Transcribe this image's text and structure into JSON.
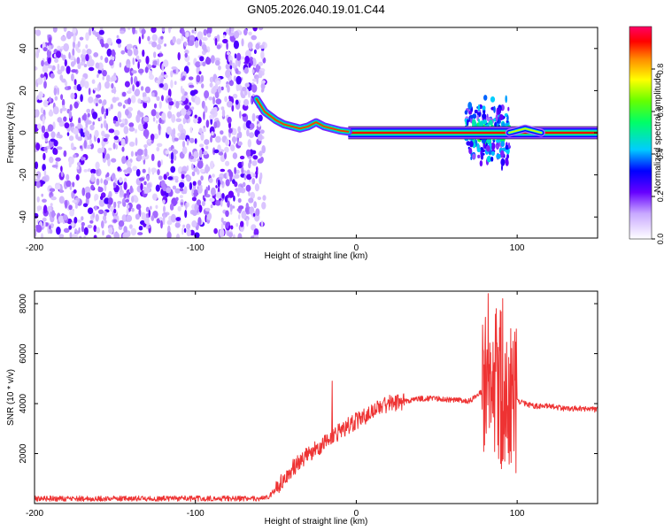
{
  "title": "GN05.2026.040.19.01.C44",
  "chart_data": [
    {
      "type": "heatmap",
      "xlabel": "Height of straight line (km)",
      "ylabel": "Frequency (Hz)",
      "xlim": [
        -200,
        150
      ],
      "ylim": [
        -50,
        50
      ],
      "xticks": [
        -200,
        -100,
        0,
        100
      ],
      "yticks": [
        -40,
        -20,
        0,
        20,
        40
      ],
      "colorbar": {
        "label": "Normalized spectral amplitude",
        "range": [
          0,
          1
        ],
        "ticks": [
          "0.0",
          "0.2",
          "0.4",
          "0.6",
          "0.8"
        ]
      },
      "regions": [
        {
          "name": "broadband noise",
          "x_range": [
            -200,
            -57
          ],
          "y_range": [
            -50,
            50
          ],
          "amplitude": 0.1
        },
        {
          "name": "descending ridge",
          "points": [
            [
              -62,
              16
            ],
            [
              -57,
              10
            ],
            [
              -50,
              6
            ],
            [
              -45,
              4
            ],
            [
              -40,
              3
            ],
            [
              -35,
              2
            ],
            [
              -30,
              3
            ],
            [
              -25,
              5
            ],
            [
              -20,
              3
            ],
            [
              -15,
              2
            ],
            [
              -10,
              1
            ],
            [
              -5,
              0.5
            ]
          ],
          "amplitude": 0.9
        },
        {
          "name": "steady tone",
          "x_range": [
            -5,
            150
          ],
          "frequency": 0,
          "amplitude": 0.95
        },
        {
          "name": "disturbance",
          "x_range": [
            68,
            95
          ],
          "y_range": [
            -20,
            20
          ],
          "amplitude": 0.5
        },
        {
          "name": "secondary ridge",
          "points": [
            [
              95,
              0
            ],
            [
              100,
              1
            ],
            [
              105,
              2
            ],
            [
              110,
              1
            ],
            [
              115,
              0
            ]
          ],
          "amplitude": 0.6
        }
      ]
    },
    {
      "type": "line",
      "xlabel": "Height of straight line (km)",
      "ylabel": "SNR (10 * v/v)",
      "xlim": [
        -200,
        150
      ],
      "ylim": [
        0,
        8500
      ],
      "xticks": [
        -200,
        -100,
        0,
        100
      ],
      "yticks": [
        2000,
        4000,
        6000,
        8000
      ],
      "series": [
        {
          "name": "SNR",
          "color": "#ee3333",
          "envelope": [
            [
              -200,
              200
            ],
            [
              -150,
              200
            ],
            [
              -100,
              200
            ],
            [
              -60,
              200
            ],
            [
              -55,
              250
            ],
            [
              -48,
              700
            ],
            [
              -40,
              1400
            ],
            [
              -30,
              2000
            ],
            [
              -20,
              2400
            ],
            [
              -10,
              2900
            ],
            [
              0,
              3300
            ],
            [
              10,
              3700
            ],
            [
              20,
              4000
            ],
            [
              30,
              4100
            ],
            [
              40,
              4200
            ],
            [
              50,
              4200
            ],
            [
              60,
              4150
            ],
            [
              70,
              4100
            ],
            [
              75,
              4300
            ],
            [
              80,
              4600
            ],
            [
              85,
              4700
            ],
            [
              95,
              4400
            ],
            [
              100,
              4100
            ],
            [
              110,
              3900
            ],
            [
              120,
              3900
            ],
            [
              130,
              3800
            ],
            [
              140,
              3800
            ],
            [
              150,
              3750
            ]
          ],
          "spikes": [
            [
              -15,
              4900
            ],
            [
              82,
              8400
            ],
            [
              87,
              7800
            ],
            [
              91,
              8200
            ],
            [
              96,
              7000
            ]
          ]
        }
      ]
    }
  ]
}
